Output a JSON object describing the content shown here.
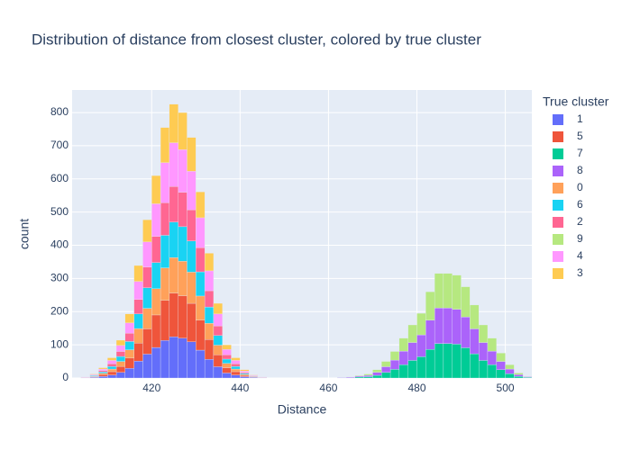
{
  "chart_data": {
    "type": "histogram",
    "title": "Distribution of distance from closest cluster, colored by true cluster",
    "x_label": "Distance",
    "y_label": "count",
    "legend_title": "True cluster",
    "bins": [
      404,
      406,
      408,
      410,
      412,
      414,
      416,
      418,
      420,
      422,
      424,
      426,
      428,
      430,
      432,
      434,
      436,
      438,
      440,
      442,
      444,
      446,
      448,
      450,
      452,
      454,
      456,
      458,
      460,
      462,
      464,
      466,
      468,
      470,
      472,
      474,
      476,
      478,
      480,
      482,
      484,
      486,
      488,
      490,
      492,
      494,
      496,
      498,
      500,
      502,
      504,
      506
    ],
    "xlim": [
      402,
      506
    ],
    "xticks": [
      420,
      440,
      460,
      480,
      500
    ],
    "ylim": [
      0,
      868
    ],
    "yticks": [
      0,
      100,
      200,
      300,
      400,
      500,
      600,
      700,
      800
    ],
    "grid": true,
    "stacked": true,
    "series": [
      {
        "name": "1",
        "color": "#636efa",
        "values": [
          0,
          2,
          5,
          9,
          17,
          29,
          51,
          72,
          92,
          113,
          124,
          120,
          109,
          84,
          56,
          34,
          15,
          9,
          4,
          2,
          1,
          0,
          0,
          0,
          0,
          0,
          0,
          0,
          0,
          0,
          0,
          0,
          0,
          0,
          0,
          0,
          0,
          0,
          0,
          0,
          0,
          0,
          0,
          0,
          0,
          0,
          0,
          0,
          0,
          0,
          0
        ]
      },
      {
        "name": "5",
        "color": "#EF553B",
        "values": [
          1,
          2,
          5,
          10,
          18,
          31,
          54,
          76,
          98,
          121,
          132,
          128,
          116,
          90,
          60,
          36,
          16,
          10,
          4,
          2,
          1,
          0,
          0,
          0,
          0,
          0,
          0,
          0,
          0,
          0,
          0,
          0,
          0,
          0,
          0,
          0,
          0,
          0,
          0,
          0,
          0,
          0,
          0,
          0,
          0,
          0,
          0,
          0,
          0,
          0,
          0
        ]
      },
      {
        "name": "7",
        "color": "#00cc96",
        "values": [
          0,
          0,
          0,
          0,
          0,
          0,
          0,
          0,
          0,
          0,
          0,
          0,
          0,
          0,
          0,
          0,
          0,
          0,
          0,
          0,
          0,
          0,
          0,
          0,
          0,
          0,
          0,
          0,
          0,
          1,
          1,
          3,
          4,
          8,
          17,
          26,
          40,
          53,
          64,
          86,
          104,
          104,
          102,
          91,
          73,
          53,
          40,
          25,
          13,
          5,
          2
        ]
      },
      {
        "name": "8",
        "color": "#ab63fa",
        "values": [
          0,
          0,
          0,
          0,
          0,
          0,
          0,
          0,
          0,
          0,
          0,
          0,
          0,
          0,
          0,
          0,
          0,
          0,
          0,
          0,
          0,
          0,
          0,
          0,
          0,
          0,
          0,
          0,
          0,
          1,
          2,
          3,
          4,
          9,
          17,
          28,
          41,
          54,
          66,
          88,
          107,
          107,
          105,
          93,
          75,
          54,
          41,
          25,
          14,
          5,
          2
        ]
      },
      {
        "name": "0",
        "color": "#FFA15A",
        "values": [
          0,
          1,
          4,
          8,
          15,
          25,
          44,
          62,
          79,
          98,
          107,
          104,
          94,
          73,
          49,
          29,
          13,
          8,
          3,
          1,
          0,
          0,
          0,
          0,
          0,
          0,
          0,
          0,
          0,
          0,
          0,
          0,
          0,
          0,
          0,
          0,
          0,
          0,
          0,
          0,
          0,
          0,
          0,
          0,
          0,
          0,
          0,
          0,
          0,
          0,
          0
        ]
      },
      {
        "name": "6",
        "color": "#19d3f3",
        "values": [
          0,
          2,
          4,
          8,
          15,
          25,
          44,
          62,
          79,
          98,
          107,
          104,
          94,
          73,
          49,
          29,
          13,
          8,
          3,
          1,
          0,
          0,
          0,
          0,
          0,
          0,
          0,
          0,
          0,
          0,
          0,
          0,
          0,
          0,
          0,
          0,
          0,
          0,
          0,
          0,
          0,
          0,
          0,
          0,
          0,
          0,
          0,
          0,
          0,
          0,
          0
        ]
      },
      {
        "name": "2",
        "color": "#FF6692",
        "values": [
          1,
          1,
          4,
          8,
          15,
          25,
          44,
          62,
          79,
          98,
          107,
          104,
          94,
          73,
          49,
          29,
          13,
          8,
          3,
          1,
          0,
          0,
          0,
          0,
          0,
          0,
          0,
          0,
          0,
          0,
          0,
          0,
          0,
          0,
          0,
          0,
          0,
          0,
          0,
          0,
          0,
          0,
          0,
          0,
          0,
          0,
          0,
          0,
          0,
          0,
          0
        ]
      },
      {
        "name": "9",
        "color": "#B6E880",
        "values": [
          0,
          0,
          0,
          0,
          0,
          0,
          0,
          0,
          0,
          0,
          0,
          0,
          0,
          0,
          0,
          0,
          0,
          0,
          0,
          0,
          0,
          0,
          0,
          0,
          0,
          0,
          0,
          0,
          0,
          0,
          1,
          2,
          4,
          8,
          16,
          26,
          39,
          53,
          65,
          86,
          104,
          104,
          103,
          91,
          72,
          53,
          39,
          25,
          13,
          5,
          1
        ]
      },
      {
        "name": "4",
        "color": "#FF97FF",
        "values": [
          1,
          2,
          5,
          10,
          18,
          31,
          54,
          76,
          98,
          121,
          132,
          128,
          116,
          90,
          60,
          36,
          16,
          10,
          4,
          2,
          1,
          0,
          0,
          0,
          0,
          0,
          0,
          0,
          0,
          0,
          0,
          0,
          0,
          0,
          0,
          0,
          0,
          0,
          0,
          0,
          0,
          0,
          0,
          0,
          0,
          0,
          0,
          0,
          0,
          0,
          0
        ]
      },
      {
        "name": "3",
        "color": "#FECB52",
        "values": [
          0,
          2,
          4,
          8,
          16,
          27,
          48,
          67,
          85,
          106,
          116,
          112,
          102,
          78,
          53,
          32,
          14,
          8,
          4,
          1,
          0,
          0,
          0,
          0,
          0,
          0,
          0,
          0,
          0,
          0,
          0,
          0,
          0,
          0,
          0,
          0,
          0,
          0,
          0,
          0,
          0,
          0,
          0,
          0,
          0,
          0,
          0,
          0,
          0,
          0,
          0
        ]
      }
    ]
  }
}
